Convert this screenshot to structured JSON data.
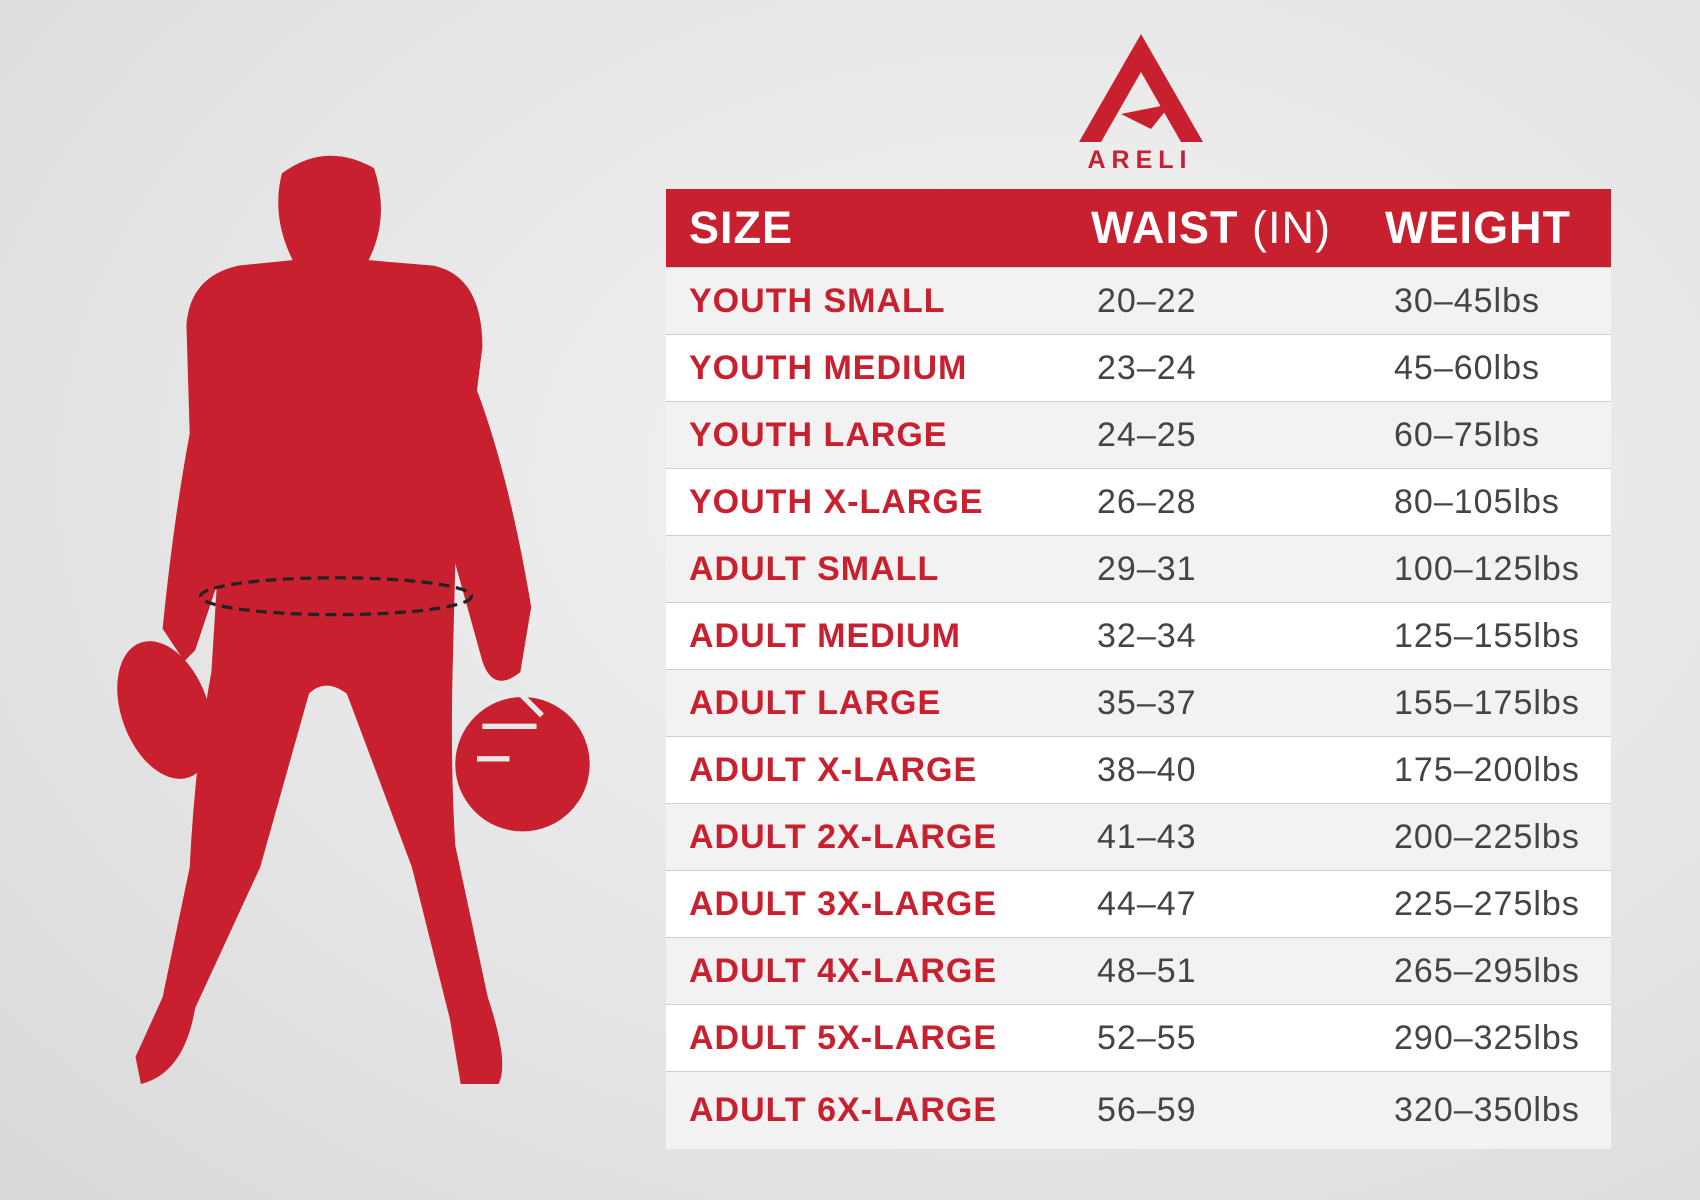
{
  "logo": {
    "text": "ARELI"
  },
  "table": {
    "columns": [
      "SIZE",
      {
        "text": "WAIST",
        "note": "(IN)"
      },
      "WEIGHT"
    ],
    "rows": [
      [
        "YOUTH SMALL",
        "20–22",
        "30–45lbs"
      ],
      [
        "YOUTH MEDIUM",
        "23–24",
        "45–60lbs"
      ],
      [
        "YOUTH LARGE",
        "24–25",
        "60–75lbs"
      ],
      [
        "YOUTH X-LARGE",
        "26–28",
        "80–105lbs"
      ],
      [
        "ADULT SMALL",
        "29–31",
        "100–125lbs"
      ],
      [
        "ADULT MEDIUM",
        "32–34",
        "125–155lbs"
      ],
      [
        "ADULT LARGE",
        "35–37",
        "155–175lbs"
      ],
      [
        "ADULT X-LARGE",
        "38–40",
        "175–200lbs"
      ],
      [
        "ADULT 2X-LARGE",
        "41–43",
        "200–225lbs"
      ],
      [
        "ADULT 3X-LARGE",
        "44–47",
        "225–275lbs"
      ],
      [
        "ADULT 4X-LARGE",
        "48–51",
        "265–295lbs"
      ],
      [
        "ADULT 5X-LARGE",
        "52–55",
        "290–325lbs"
      ],
      [
        "ADULT 6X-LARGE",
        "56–59",
        "320–350lbs"
      ]
    ]
  }
}
